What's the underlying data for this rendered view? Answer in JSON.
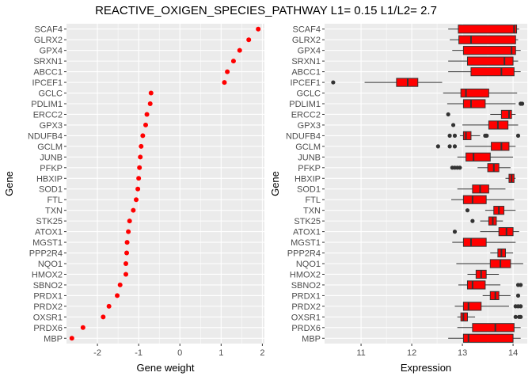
{
  "title": "REACTIVE_OXIGEN_SPECIES_PATHWAY L1= 0.15 L1/L2= 2.7",
  "colors": {
    "panel_bg": "#ebebeb",
    "grid": "#ffffff",
    "point": "#ff0000",
    "box_fill": "#ff0000",
    "box_line": "#333333",
    "outlier": "#333333",
    "tick_text": "#4d4d4d"
  },
  "chart_data": [
    {
      "type": "scatter",
      "xlabel": "Gene weight",
      "ylabel": "Gene",
      "xlim": [
        -2.75,
        2.05
      ],
      "xticks": [
        -2,
        -1,
        0,
        1,
        2
      ],
      "xtick_labels": [
        "-2",
        "-1",
        "0",
        "1",
        "2"
      ],
      "grid": true,
      "genes": [
        "SCAF4",
        "GLRX2",
        "GPX4",
        "SRXN1",
        "ABCC1",
        "IPCEF1",
        "GCLC",
        "PDLIM1",
        "ERCC2",
        "GPX3",
        "NDUFB4",
        "GCLM",
        "JUNB",
        "PFKP",
        "HBXIP",
        "SOD1",
        "FTL",
        "TXN",
        "STK25",
        "ATOX1",
        "MGST1",
        "PPP2R4",
        "NQO1",
        "HMOX2",
        "SBNO2",
        "PRDX1",
        "PRDX2",
        "OXSR1",
        "PRDX6",
        "MBP"
      ],
      "weights": [
        1.9,
        1.67,
        1.45,
        1.3,
        1.15,
        1.08,
        -0.7,
        -0.72,
        -0.8,
        -0.83,
        -0.9,
        -0.94,
        -0.96,
        -0.98,
        -1.0,
        -1.02,
        -1.06,
        -1.13,
        -1.22,
        -1.25,
        -1.28,
        -1.29,
        -1.31,
        -1.31,
        -1.45,
        -1.52,
        -1.72,
        -1.86,
        -2.35,
        -2.62
      ]
    },
    {
      "type": "box",
      "xlabel": "Expression",
      "ylabel": "Gene",
      "xlim": [
        10.28,
        14.28
      ],
      "xticks": [
        11,
        12,
        13,
        14
      ],
      "xtick_labels": [
        "11",
        "12",
        "13",
        "14"
      ],
      "grid": true,
      "genes": [
        "SCAF4",
        "GLRX2",
        "GPX4",
        "SRXN1",
        "ABCC1",
        "IPCEF1",
        "GCLC",
        "PDLIM1",
        "ERCC2",
        "GPX3",
        "NDUFB4",
        "GCLM",
        "JUNB",
        "PFKP",
        "HBXIP",
        "SOD1",
        "FTL",
        "TXN",
        "STK25",
        "ATOX1",
        "MGST1",
        "PPP2R4",
        "NQO1",
        "HMOX2",
        "SBNO2",
        "PRDX1",
        "PRDX2",
        "OXSR1",
        "PRDX6",
        "MBP"
      ],
      "boxes": [
        {
          "gene": "SCAF4",
          "whislo": 12.72,
          "q1": 12.92,
          "med": 14.02,
          "q3": 14.07,
          "whishi": 14.12,
          "outliers": []
        },
        {
          "gene": "GLRX2",
          "whislo": 12.75,
          "q1": 12.93,
          "med": 13.17,
          "q3": 14.05,
          "whishi": 14.1,
          "outliers": []
        },
        {
          "gene": "GPX4",
          "whislo": 12.8,
          "q1": 13.02,
          "med": 13.97,
          "q3": 14.05,
          "whishi": 14.15,
          "outliers": []
        },
        {
          "gene": "SRXN1",
          "whislo": 12.72,
          "q1": 13.1,
          "med": 13.83,
          "q3": 14.0,
          "whishi": 14.1,
          "outliers": []
        },
        {
          "gene": "ABCC1",
          "whislo": 12.72,
          "q1": 13.17,
          "med": 13.77,
          "q3": 14.02,
          "whishi": 14.15,
          "outliers": []
        },
        {
          "gene": "IPCEF1",
          "whislo": 11.07,
          "q1": 11.7,
          "med": 11.92,
          "q3": 12.12,
          "whishi": 12.6,
          "outliers": [
            10.45
          ]
        },
        {
          "gene": "GCLC",
          "whislo": 12.62,
          "q1": 12.97,
          "med": 13.07,
          "q3": 13.52,
          "whishi": 14.08,
          "outliers": []
        },
        {
          "gene": "PDLIM1",
          "whislo": 12.7,
          "q1": 13.02,
          "med": 13.17,
          "q3": 13.45,
          "whishi": 14.05,
          "outliers": [
            14.15,
            14.18
          ]
        },
        {
          "gene": "ERCC2",
          "whislo": 13.55,
          "q1": 13.77,
          "med": 13.92,
          "q3": 13.97,
          "whishi": 14.05,
          "outliers": [
            12.72
          ]
        },
        {
          "gene": "GPX3",
          "whislo": 13.0,
          "q1": 13.52,
          "med": 13.7,
          "q3": 13.9,
          "whishi": 14.1,
          "outliers": [
            12.82
          ]
        },
        {
          "gene": "NDUFB4",
          "whislo": 12.95,
          "q1": 13.02,
          "med": 13.07,
          "q3": 13.17,
          "whishi": 13.35,
          "outliers": [
            12.75,
            12.85,
            13.45,
            13.48,
            14.1
          ]
        },
        {
          "gene": "GCLM",
          "whislo": 13.05,
          "q1": 13.57,
          "med": 13.77,
          "q3": 13.92,
          "whishi": 14.05,
          "outliers": [
            12.52,
            12.75,
            12.85
          ]
        },
        {
          "gene": "JUNB",
          "whislo": 12.9,
          "q1": 13.07,
          "med": 13.22,
          "q3": 13.55,
          "whishi": 14.0,
          "outliers": []
        },
        {
          "gene": "PFKP",
          "whislo": 13.3,
          "q1": 13.5,
          "med": 13.62,
          "q3": 13.72,
          "whishi": 13.95,
          "outliers": [
            12.8,
            12.85,
            12.9,
            12.95
          ]
        },
        {
          "gene": "HBXIP",
          "whislo": 13.85,
          "q1": 13.92,
          "med": 13.97,
          "q3": 14.02,
          "whishi": 14.05,
          "outliers": []
        },
        {
          "gene": "SOD1",
          "whislo": 12.9,
          "q1": 13.2,
          "med": 13.35,
          "q3": 13.52,
          "whishi": 13.85,
          "outliers": []
        },
        {
          "gene": "FTL",
          "whislo": 12.78,
          "q1": 13.02,
          "med": 13.2,
          "q3": 13.47,
          "whishi": 14.02,
          "outliers": []
        },
        {
          "gene": "TXN",
          "whislo": 13.45,
          "q1": 13.62,
          "med": 13.72,
          "q3": 13.82,
          "whishi": 14.05,
          "outliers": [
            13.1
          ]
        },
        {
          "gene": "STK25",
          "whislo": 13.35,
          "q1": 13.52,
          "med": 13.6,
          "q3": 13.67,
          "whishi": 13.8,
          "outliers": [
            13.2
          ]
        },
        {
          "gene": "ATOX1",
          "whislo": 13.35,
          "q1": 13.72,
          "med": 13.87,
          "q3": 14.0,
          "whishi": 14.12,
          "outliers": [
            12.85
          ]
        },
        {
          "gene": "MGST1",
          "whislo": 12.8,
          "q1": 13.02,
          "med": 13.17,
          "q3": 13.47,
          "whishi": 14.05,
          "outliers": []
        },
        {
          "gene": "PPP2R4",
          "whislo": 13.55,
          "q1": 13.7,
          "med": 13.77,
          "q3": 13.85,
          "whishi": 14.0,
          "outliers": []
        },
        {
          "gene": "NQO1",
          "whislo": 12.88,
          "q1": 13.55,
          "med": 13.75,
          "q3": 13.95,
          "whishi": 14.2,
          "outliers": []
        },
        {
          "gene": "HMOX2",
          "whislo": 13.1,
          "q1": 13.27,
          "med": 13.37,
          "q3": 13.47,
          "whishi": 13.72,
          "outliers": []
        },
        {
          "gene": "SBNO2",
          "whislo": 12.92,
          "q1": 13.1,
          "med": 13.2,
          "q3": 13.45,
          "whishi": 13.75,
          "outliers": [
            14.1,
            14.15
          ]
        },
        {
          "gene": "PRDX1",
          "whislo": 13.4,
          "q1": 13.55,
          "med": 13.65,
          "q3": 13.72,
          "whishi": 13.95,
          "outliers": [
            14.1
          ]
        },
        {
          "gene": "PRDX2",
          "whislo": 12.85,
          "q1": 13.02,
          "med": 13.12,
          "q3": 13.37,
          "whishi": 13.92,
          "outliers": [
            14.05,
            14.1,
            14.15
          ]
        },
        {
          "gene": "OXSR1",
          "whislo": 12.9,
          "q1": 12.97,
          "med": 13.02,
          "q3": 13.1,
          "whishi": 13.25,
          "outliers": [
            14.05,
            14.12,
            14.15
          ]
        },
        {
          "gene": "PRDX6",
          "whislo": 12.9,
          "q1": 13.2,
          "med": 13.65,
          "q3": 14.02,
          "whishi": 14.15,
          "outliers": []
        },
        {
          "gene": "MBP",
          "whislo": 12.72,
          "q1": 13.02,
          "med": 13.12,
          "q3": 14.0,
          "whishi": 14.15,
          "outliers": []
        }
      ]
    }
  ]
}
